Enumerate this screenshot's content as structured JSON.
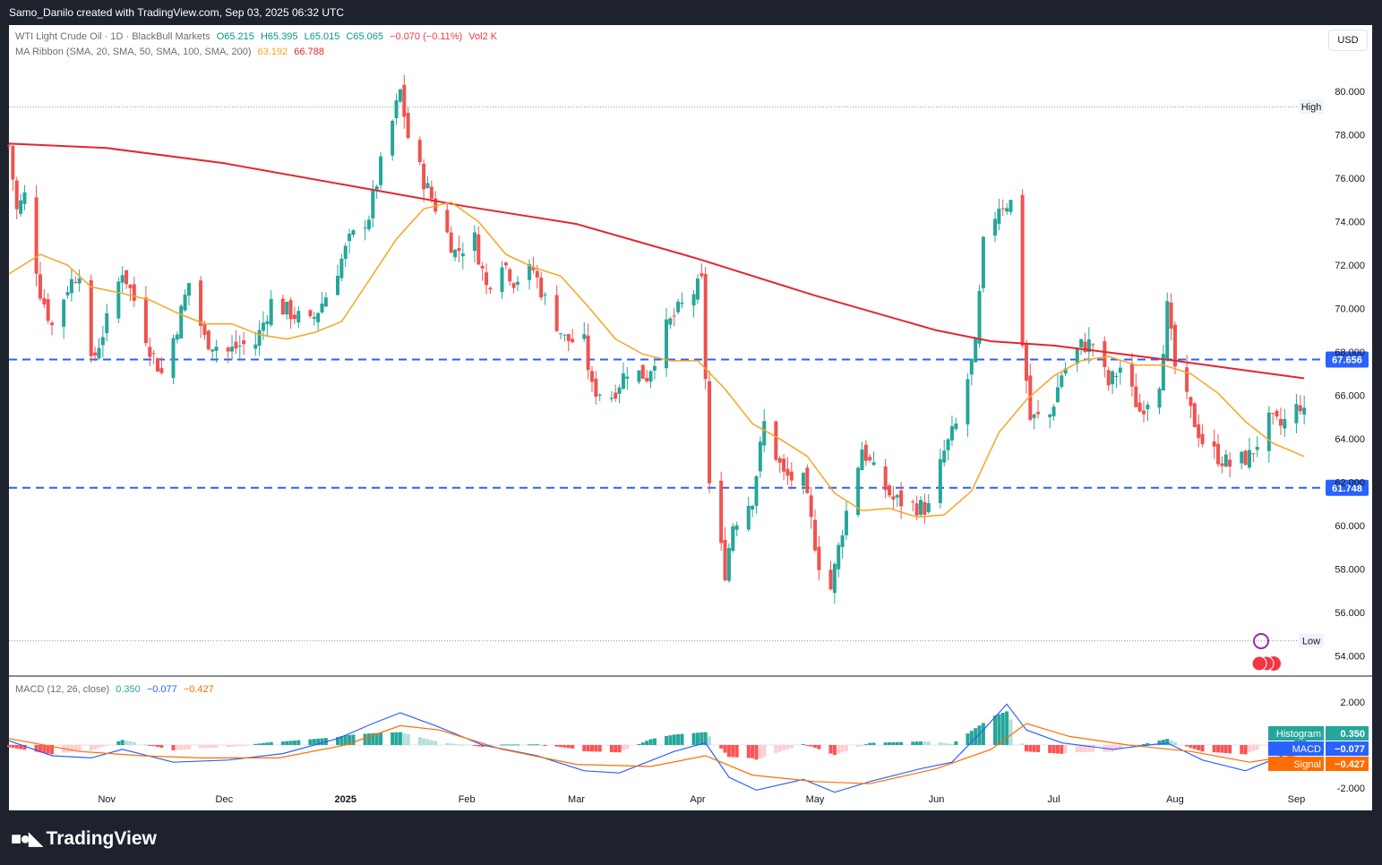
{
  "header": {
    "attribution": "Samo_Danilo created with TradingView.com, Sep 03, 2025 06:32 UTC"
  },
  "legend": {
    "symbol": "WTI Light Crude Oil · 1D · BlackBull Markets",
    "open": "O65.215",
    "high": "H65.395",
    "low": "L65.015",
    "close": "C65.065",
    "change": "−0.070 (−0.11%)",
    "volume": "Vol2 K",
    "ma_label": "MA Ribbon (SMA, 20, SMA, 50, SMA, 100, SMA, 200)",
    "ma_fast": "63.192",
    "ma_slow": "66.788"
  },
  "currency_button": "USD",
  "macd_legend": {
    "label": "MACD (12, 26, close)",
    "hist": "0.350",
    "macd": "−0.077",
    "signal": "−0.427"
  },
  "footer": {
    "brand": "TradingView"
  },
  "colors": {
    "up": "#26a69a",
    "down": "#ef5350",
    "ma20": "#f5a623",
    "ma200": "#e3262e",
    "level": "#2962ff",
    "macd_line": "#2962ff",
    "signal_line": "#ff6d00"
  },
  "chart_data": {
    "type": "candlestick",
    "price_ticks": [
      "80.000",
      "78.000",
      "76.000",
      "74.000",
      "72.000",
      "70.000",
      "68.000",
      "66.000",
      "64.000",
      "62.000",
      "60.000",
      "58.000",
      "56.000",
      "54.000"
    ],
    "ylim": [
      53.2,
      81.0
    ],
    "x_range": [
      "2024-10-07",
      "2025-09-08"
    ],
    "x_ticks": [
      {
        "label": "Nov",
        "date": "2024-11-01"
      },
      {
        "label": "Dec",
        "date": "2024-12-01"
      },
      {
        "label": "2025",
        "date": "2025-01-01",
        "bold": true
      },
      {
        "label": "Feb",
        "date": "2025-02-01"
      },
      {
        "label": "Mar",
        "date": "2025-03-01"
      },
      {
        "label": "Apr",
        "date": "2025-04-01"
      },
      {
        "label": "May",
        "date": "2025-05-01"
      },
      {
        "label": "Jun",
        "date": "2025-06-01"
      },
      {
        "label": "Jul",
        "date": "2025-07-01"
      },
      {
        "label": "Aug",
        "date": "2025-08-01"
      },
      {
        "label": "Sep",
        "date": "2025-09-01"
      }
    ],
    "levels": [
      {
        "value": 67.656,
        "label": "67.656"
      },
      {
        "value": 61.748,
        "label": "61.748"
      }
    ],
    "high_marker": {
      "label": "High",
      "value": 79.3
    },
    "low_marker": {
      "label": "Low",
      "value": 54.7
    },
    "close_path": [
      [
        "2024-10-07",
        77.5
      ],
      [
        "2024-10-09",
        74.5
      ],
      [
        "2024-10-11",
        75.2
      ],
      [
        "2024-10-15",
        70.8
      ],
      [
        "2024-10-18",
        69.2
      ],
      [
        "2024-10-22",
        71.0
      ],
      [
        "2024-10-25",
        71.8
      ],
      [
        "2024-10-28",
        67.4
      ],
      [
        "2024-11-01",
        69.4
      ],
      [
        "2024-11-05",
        71.8
      ],
      [
        "2024-11-08",
        70.4
      ],
      [
        "2024-11-12",
        68.2
      ],
      [
        "2024-11-15",
        67.0
      ],
      [
        "2024-11-19",
        69.2
      ],
      [
        "2024-11-22",
        71.2
      ],
      [
        "2024-11-26",
        68.6
      ],
      [
        "2024-12-02",
        68.0
      ],
      [
        "2024-12-05",
        68.3
      ],
      [
        "2024-12-09",
        68.4
      ],
      [
        "2024-12-13",
        70.3
      ],
      [
        "2024-12-18",
        69.8
      ],
      [
        "2024-12-23",
        69.3
      ],
      [
        "2024-12-27",
        70.6
      ],
      [
        "2025-01-02",
        73.1
      ],
      [
        "2025-01-07",
        74.3
      ],
      [
        "2025-01-10",
        76.6
      ],
      [
        "2025-01-13",
        78.6
      ],
      [
        "2025-01-15",
        80.0
      ],
      [
        "2025-01-17",
        77.9
      ],
      [
        "2025-01-21",
        75.9
      ],
      [
        "2025-01-24",
        74.7
      ],
      [
        "2025-01-29",
        72.6
      ],
      [
        "2025-02-03",
        73.2
      ],
      [
        "2025-02-06",
        71.0
      ],
      [
        "2025-02-10",
        72.3
      ],
      [
        "2025-02-13",
        71.3
      ],
      [
        "2025-02-18",
        71.8
      ],
      [
        "2025-02-21",
        70.4
      ],
      [
        "2025-02-26",
        68.6
      ],
      [
        "2025-03-03",
        68.4
      ],
      [
        "2025-03-05",
        66.3
      ],
      [
        "2025-03-10",
        66.0
      ],
      [
        "2025-03-14",
        67.2
      ],
      [
        "2025-03-19",
        66.9
      ],
      [
        "2025-03-24",
        69.1
      ],
      [
        "2025-03-27",
        69.9
      ],
      [
        "2025-04-02",
        71.2
      ],
      [
        "2025-04-03",
        66.9
      ],
      [
        "2025-04-04",
        61.9
      ],
      [
        "2025-04-08",
        57.9
      ],
      [
        "2025-04-10",
        60.1
      ],
      [
        "2025-04-15",
        61.3
      ],
      [
        "2025-04-18",
        64.7
      ],
      [
        "2025-04-23",
        62.3
      ],
      [
        "2025-04-28",
        62.0
      ],
      [
        "2025-05-02",
        58.3
      ],
      [
        "2025-05-05",
        57.1
      ],
      [
        "2025-05-08",
        59.9
      ],
      [
        "2025-05-13",
        63.6
      ],
      [
        "2025-05-16",
        62.5
      ],
      [
        "2025-05-21",
        61.2
      ],
      [
        "2025-05-27",
        60.9
      ],
      [
        "2025-05-30",
        60.8
      ],
      [
        "2025-06-03",
        63.4
      ],
      [
        "2025-06-06",
        64.6
      ],
      [
        "2025-06-11",
        68.2
      ],
      [
        "2025-06-13",
        72.9
      ],
      [
        "2025-06-17",
        74.8
      ],
      [
        "2025-06-20",
        74.9
      ],
      [
        "2025-06-23",
        68.5
      ],
      [
        "2025-06-25",
        64.9
      ],
      [
        "2025-06-30",
        65.1
      ],
      [
        "2025-07-03",
        67.0
      ],
      [
        "2025-07-08",
        68.3
      ],
      [
        "2025-07-11",
        68.4
      ],
      [
        "2025-07-15",
        66.5
      ],
      [
        "2025-07-18",
        67.3
      ],
      [
        "2025-07-23",
        65.3
      ],
      [
        "2025-07-28",
        66.7
      ],
      [
        "2025-07-30",
        70.0
      ],
      [
        "2025-08-01",
        67.3
      ],
      [
        "2025-08-05",
        65.2
      ],
      [
        "2025-08-08",
        63.9
      ],
      [
        "2025-08-12",
        63.2
      ],
      [
        "2025-08-15",
        62.8
      ],
      [
        "2025-08-20",
        63.2
      ],
      [
        "2025-08-25",
        64.8
      ],
      [
        "2025-08-28",
        64.6
      ],
      [
        "2025-09-02",
        65.6
      ],
      [
        "2025-09-03",
        65.07
      ]
    ],
    "ma20": [
      [
        "2024-10-07",
        71.6
      ],
      [
        "2024-10-15",
        72.5
      ],
      [
        "2024-10-22",
        72.0
      ],
      [
        "2024-10-28",
        71.0
      ],
      [
        "2024-11-05",
        70.7
      ],
      [
        "2024-11-12",
        70.4
      ],
      [
        "2024-11-19",
        69.8
      ],
      [
        "2024-11-26",
        69.3
      ],
      [
        "2024-12-03",
        69.3
      ],
      [
        "2024-12-10",
        68.8
      ],
      [
        "2024-12-17",
        68.6
      ],
      [
        "2024-12-24",
        68.9
      ],
      [
        "2024-12-31",
        69.4
      ],
      [
        "2025-01-07",
        71.3
      ],
      [
        "2025-01-14",
        73.2
      ],
      [
        "2025-01-21",
        74.6
      ],
      [
        "2025-01-28",
        74.9
      ],
      [
        "2025-02-04",
        74.0
      ],
      [
        "2025-02-11",
        72.5
      ],
      [
        "2025-02-18",
        71.9
      ],
      [
        "2025-02-25",
        71.5
      ],
      [
        "2025-03-04",
        70.1
      ],
      [
        "2025-03-11",
        68.6
      ],
      [
        "2025-03-18",
        67.9
      ],
      [
        "2025-03-25",
        67.6
      ],
      [
        "2025-04-01",
        67.6
      ],
      [
        "2025-04-08",
        66.3
      ],
      [
        "2025-04-15",
        64.7
      ],
      [
        "2025-04-22",
        64.0
      ],
      [
        "2025-04-29",
        63.2
      ],
      [
        "2025-05-06",
        61.5
      ],
      [
        "2025-05-13",
        60.7
      ],
      [
        "2025-05-20",
        60.8
      ],
      [
        "2025-05-27",
        60.4
      ],
      [
        "2025-06-03",
        60.5
      ],
      [
        "2025-06-10",
        61.6
      ],
      [
        "2025-06-17",
        64.3
      ],
      [
        "2025-06-24",
        65.8
      ],
      [
        "2025-07-01",
        66.9
      ],
      [
        "2025-07-08",
        67.6
      ],
      [
        "2025-07-15",
        67.8
      ],
      [
        "2025-07-22",
        67.4
      ],
      [
        "2025-07-29",
        67.4
      ],
      [
        "2025-08-05",
        67.0
      ],
      [
        "2025-08-12",
        66.1
      ],
      [
        "2025-08-19",
        64.8
      ],
      [
        "2025-08-26",
        63.8
      ],
      [
        "2025-09-03",
        63.19
      ]
    ],
    "ma200": [
      [
        "2024-10-07",
        77.6
      ],
      [
        "2024-11-01",
        77.4
      ],
      [
        "2024-12-01",
        76.7
      ],
      [
        "2025-01-01",
        75.7
      ],
      [
        "2025-02-01",
        74.7
      ],
      [
        "2025-03-01",
        73.9
      ],
      [
        "2025-04-01",
        72.3
      ],
      [
        "2025-05-01",
        70.6
      ],
      [
        "2025-06-01",
        69.0
      ],
      [
        "2025-06-15",
        68.5
      ],
      [
        "2025-07-01",
        68.3
      ],
      [
        "2025-08-01",
        67.6
      ],
      [
        "2025-09-03",
        66.79
      ]
    ],
    "macd_panel": {
      "ticks": [
        "2.000",
        "-2.000"
      ],
      "ylim": [
        -2.5,
        3.0
      ],
      "histogram_label": "Histogram",
      "histogram_value": "0.350",
      "macd_label": "MACD",
      "macd_value": "−0.077",
      "signal_label": "Signal",
      "signal_value": "−0.427",
      "macd_line": [
        [
          "2024-10-07",
          0.2
        ],
        [
          "2024-10-18",
          -0.5
        ],
        [
          "2024-10-28",
          -0.6
        ],
        [
          "2024-11-05",
          -0.2
        ],
        [
          "2024-11-18",
          -0.8
        ],
        [
          "2024-12-02",
          -0.7
        ],
        [
          "2024-12-16",
          -0.4
        ],
        [
          "2024-12-30",
          0.3
        ],
        [
          "2025-01-08",
          1.0
        ],
        [
          "2025-01-15",
          1.5
        ],
        [
          "2025-01-24",
          0.9
        ],
        [
          "2025-02-05",
          0.0
        ],
        [
          "2025-02-19",
          -0.5
        ],
        [
          "2025-03-03",
          -1.2
        ],
        [
          "2025-03-12",
          -1.3
        ],
        [
          "2025-03-26",
          -0.3
        ],
        [
          "2025-04-03",
          0.1
        ],
        [
          "2025-04-09",
          -1.5
        ],
        [
          "2025-04-16",
          -2.1
        ],
        [
          "2025-04-28",
          -1.6
        ],
        [
          "2025-05-06",
          -2.2
        ],
        [
          "2025-05-15",
          -1.7
        ],
        [
          "2025-05-28",
          -1.1
        ],
        [
          "2025-06-05",
          -0.8
        ],
        [
          "2025-06-13",
          0.7
        ],
        [
          "2025-06-19",
          1.9
        ],
        [
          "2025-06-24",
          0.7
        ],
        [
          "2025-07-03",
          0.1
        ],
        [
          "2025-07-16",
          -0.2
        ],
        [
          "2025-07-30",
          0.1
        ],
        [
          "2025-08-08",
          -0.7
        ],
        [
          "2025-08-19",
          -1.2
        ],
        [
          "2025-08-27",
          -0.6
        ],
        [
          "2025-09-03",
          -0.08
        ]
      ],
      "signal_line": [
        [
          "2024-10-07",
          0.3
        ],
        [
          "2024-10-25",
          -0.3
        ],
        [
          "2024-11-10",
          -0.5
        ],
        [
          "2024-11-25",
          -0.6
        ],
        [
          "2024-12-15",
          -0.6
        ],
        [
          "2025-01-01",
          0.0
        ],
        [
          "2025-01-15",
          0.9
        ],
        [
          "2025-01-25",
          0.7
        ],
        [
          "2025-02-10",
          -0.2
        ],
        [
          "2025-03-01",
          -0.9
        ],
        [
          "2025-03-20",
          -1.0
        ],
        [
          "2025-04-03",
          -0.5
        ],
        [
          "2025-04-15",
          -1.4
        ],
        [
          "2025-05-01",
          -1.7
        ],
        [
          "2025-05-15",
          -1.8
        ],
        [
          "2025-06-01",
          -1.1
        ],
        [
          "2025-06-15",
          -0.2
        ],
        [
          "2025-06-24",
          1.0
        ],
        [
          "2025-07-05",
          0.4
        ],
        [
          "2025-07-20",
          0.0
        ],
        [
          "2025-08-05",
          -0.3
        ],
        [
          "2025-08-20",
          -0.8
        ],
        [
          "2025-09-03",
          -0.43
        ]
      ]
    }
  }
}
